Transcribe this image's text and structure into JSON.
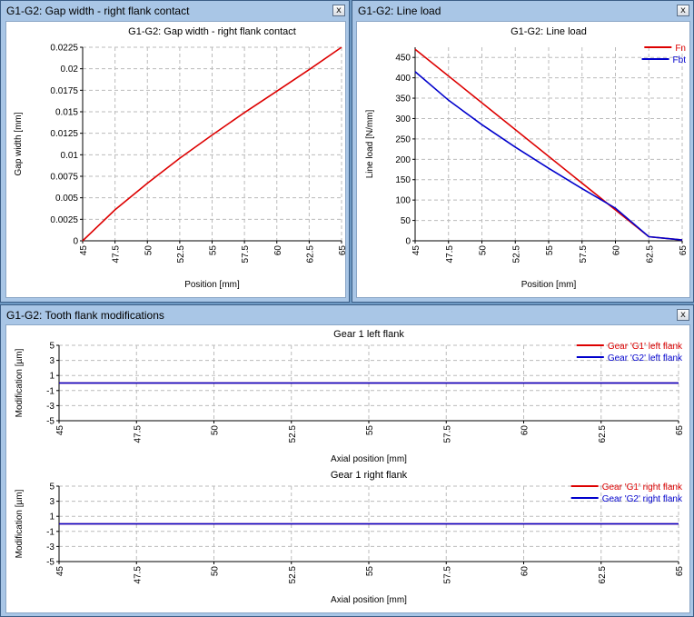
{
  "windows": {
    "gap": {
      "title": "G1-G2: Gap width - right flank contact",
      "close": "x"
    },
    "load": {
      "title": "G1-G2: Line load",
      "close": "x"
    },
    "mods": {
      "title": "G1-G2: Tooth flank modifications",
      "close": "x"
    }
  },
  "colors": {
    "red": "#dd0000",
    "blue": "#0000cc",
    "grid": "#bbbbbb"
  },
  "chart_data": [
    {
      "id": "gap",
      "type": "line",
      "title": "G1-G2: Gap width - right flank contact",
      "xlabel": "Position [mm]",
      "ylabel": "Gap width [mm]",
      "xlim": [
        45,
        65
      ],
      "ylim": [
        0,
        0.0225
      ],
      "xticks": [
        "45",
        "47.5",
        "50",
        "52.5",
        "55",
        "57.5",
        "60",
        "62.5",
        "65"
      ],
      "yticks": [
        "0",
        "0.0025",
        "0.005",
        "0.0075",
        "0.01",
        "0.0125",
        "0.015",
        "0.0175",
        "0.02",
        "0.0225"
      ],
      "grid": true,
      "series": [
        {
          "color": "#dd0000",
          "x": [
            45,
            47.5,
            50,
            52.5,
            55,
            57.5,
            60,
            62.5,
            65
          ],
          "y": [
            0,
            0.0036,
            0.0067,
            0.0096,
            0.0123,
            0.0149,
            0.0174,
            0.0199,
            0.0225
          ]
        }
      ]
    },
    {
      "id": "load",
      "type": "line",
      "title": "G1-G2: Line load",
      "xlabel": "Position [mm]",
      "ylabel": "Line load [N/mm]",
      "xlim": [
        45,
        65
      ],
      "ylim": [
        0,
        475
      ],
      "xticks": [
        "45",
        "47.5",
        "50",
        "52.5",
        "55",
        "57.5",
        "60",
        "62.5",
        "65"
      ],
      "yticks": [
        "0",
        "50",
        "100",
        "150",
        "200",
        "250",
        "300",
        "350",
        "400",
        "450"
      ],
      "grid": true,
      "legend": "top-right",
      "series": [
        {
          "name": "Fn",
          "color": "#dd0000",
          "x": [
            45,
            62.5,
            65
          ],
          "y": [
            470,
            10,
            2
          ]
        },
        {
          "name": "Fbt",
          "color": "#0000cc",
          "x": [
            45,
            47.5,
            50,
            52.5,
            55,
            57.5,
            60,
            62.5,
            65
          ],
          "y": [
            415,
            345,
            285,
            230,
            178,
            128,
            80,
            10,
            2
          ]
        }
      ]
    },
    {
      "id": "left",
      "type": "line",
      "title": "Gear 1 left flank",
      "xlabel": "Axial position [mm]",
      "ylabel": "Modification [µm]",
      "xlim": [
        45,
        65
      ],
      "ylim": [
        -5,
        5
      ],
      "xticks": [
        "45",
        "47.5",
        "50",
        "52.5",
        "55",
        "57.5",
        "60",
        "62.5",
        "65"
      ],
      "yticks": [
        "-5",
        "-3",
        "-1",
        "1",
        "3",
        "5"
      ],
      "grid": true,
      "legend": "top-right",
      "series": [
        {
          "name": "Gear 'G1' left flank",
          "color": "#dd0000",
          "x": [
            45,
            65
          ],
          "y": [
            0,
            0
          ]
        },
        {
          "name": "Gear 'G2' left flank",
          "color": "#0000cc",
          "x": [
            45,
            65
          ],
          "y": [
            0,
            0
          ]
        }
      ]
    },
    {
      "id": "right",
      "type": "line",
      "title": "Gear 1 right flank",
      "xlabel": "Axial position [mm]",
      "ylabel": "Modification [µm]",
      "xlim": [
        45,
        65
      ],
      "ylim": [
        -5,
        5
      ],
      "xticks": [
        "45",
        "47.5",
        "50",
        "52.5",
        "55",
        "57.5",
        "60",
        "62.5",
        "65"
      ],
      "yticks": [
        "-5",
        "-3",
        "-1",
        "1",
        "3",
        "5"
      ],
      "grid": true,
      "legend": "top-right",
      "series": [
        {
          "name": "Gear 'G1' right flank",
          "color": "#dd0000",
          "x": [
            45,
            65
          ],
          "y": [
            0,
            0
          ]
        },
        {
          "name": "Gear 'G2' right flank",
          "color": "#0000cc",
          "x": [
            45,
            65
          ],
          "y": [
            0,
            0
          ]
        }
      ]
    }
  ]
}
